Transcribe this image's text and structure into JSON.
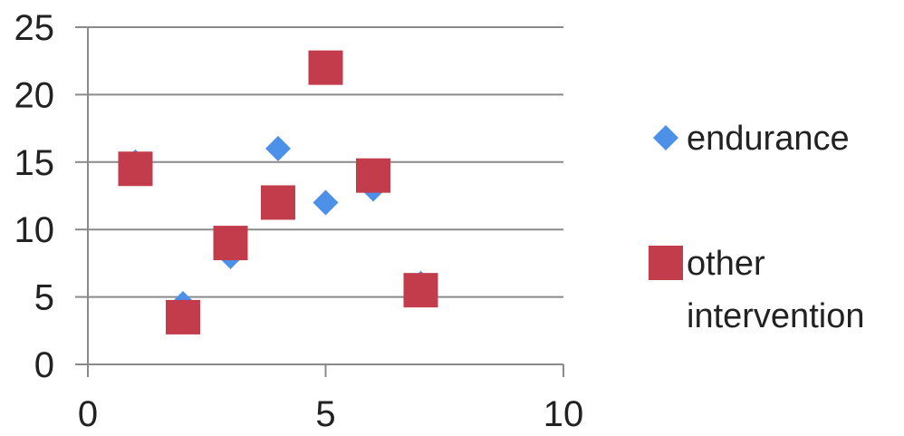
{
  "chart_data": {
    "type": "scatter",
    "title": "",
    "xlabel": "",
    "ylabel": "",
    "xlim": [
      0,
      10
    ],
    "ylim": [
      0,
      25
    ],
    "x_ticks": [
      0,
      5,
      10
    ],
    "y_ticks": [
      0,
      5,
      10,
      15,
      20,
      25
    ],
    "grid": {
      "horizontal": true,
      "vertical": false
    },
    "legend_position": "right",
    "series": [
      {
        "name": "endurance",
        "marker": "diamond",
        "color": "#4d90e8",
        "points": [
          {
            "x": 1,
            "y": 15
          },
          {
            "x": 2,
            "y": 4.5
          },
          {
            "x": 3,
            "y": 8
          },
          {
            "x": 4,
            "y": 16
          },
          {
            "x": 5,
            "y": 12
          },
          {
            "x": 6,
            "y": 13
          },
          {
            "x": 7,
            "y": 6
          }
        ]
      },
      {
        "name": "other intervention",
        "legend_lines": [
          "other",
          "intervention"
        ],
        "marker": "square",
        "color": "#c33c4c",
        "points": [
          {
            "x": 1,
            "y": 14.5
          },
          {
            "x": 2,
            "y": 3.5
          },
          {
            "x": 3,
            "y": 9
          },
          {
            "x": 4,
            "y": 12
          },
          {
            "x": 5,
            "y": 22
          },
          {
            "x": 6,
            "y": 14
          },
          {
            "x": 7,
            "y": 5.5
          }
        ]
      }
    ]
  }
}
